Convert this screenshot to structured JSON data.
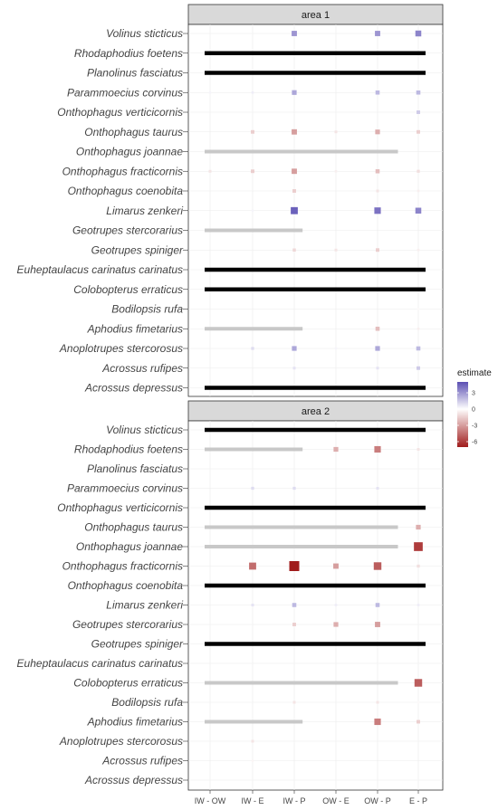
{
  "chart_data": {
    "type": "heatmap",
    "x_categories": [
      "IW - OW",
      "IW - E",
      "IW - P",
      "OW - E",
      "OW - P",
      "E - P"
    ],
    "species": [
      "Volinus sticticus",
      "Rhodaphodius foetens",
      "Planolinus fasciatus",
      "Parammoecius corvinus",
      "Onthophagus verticicornis",
      "Onthophagus taurus",
      "Onthophagus joannae",
      "Onthophagus fracticornis",
      "Onthophagus coenobita",
      "Limarus zenkeri",
      "Geotrupes stercorarius",
      "Geotrupes spiniger",
      "Euheptaulacus carinatus carinatus",
      "Colobopterus erraticus",
      "Bodilopsis rufa",
      "Aphodius fimetarius",
      "Anoplotrupes stercorosus",
      "Acrossus rufipes",
      "Acrossus depressus"
    ],
    "legend": {
      "title": "estimate",
      "ticks": [
        3,
        0,
        -3,
        -6
      ],
      "range": [
        -7,
        5
      ],
      "high_color": "#5b4fb3",
      "mid_color": "#ffffff",
      "low_color": "#a01c1c"
    },
    "colors": {
      "black_line": "#000000",
      "grey_line": "#c8c8c8",
      "strip_fill": "#d9d9d9",
      "grid": "#ebebeb"
    },
    "panels": [
      {
        "title": "area 1",
        "rows": {
          "Volinus sticticus": {
            "values": [
              null,
              null,
              3,
              null,
              3,
              3.5
            ]
          },
          "Rhodaphodius foetens": {
            "line": "black",
            "span": [
              0,
              5
            ]
          },
          "Planolinus fasciatus": {
            "line": "black",
            "span": [
              0,
              5
            ]
          },
          "Parammoecius corvinus": {
            "values": [
              0.3,
              0.5,
              2.5,
              null,
              2,
              2
            ]
          },
          "Onthophagus verticicornis": {
            "values": [
              null,
              null,
              null,
              null,
              null,
              1.5
            ]
          },
          "Onthophagus taurus": {
            "values": [
              null,
              -1.5,
              -3,
              -0.8,
              -2.5,
              -1.5
            ]
          },
          "Onthophagus joannae": {
            "line": "grey",
            "span": [
              0,
              4.5
            ]
          },
          "Onthophagus fracticornis": {
            "values": [
              -0.8,
              -1.5,
              -3,
              -0.5,
              -2,
              -1
            ]
          },
          "Onthophagus coenobita": {
            "values": [
              null,
              null,
              -1.5,
              null,
              -0.8,
              -0.5
            ]
          },
          "Limarus zenkeri": {
            "values": [
              null,
              0.3,
              4.5,
              null,
              4,
              3.5
            ]
          },
          "Geotrupes stercorarius": {
            "line": "grey",
            "span": [
              0,
              2.2
            ]
          },
          "Geotrupes spiniger": {
            "values": [
              null,
              null,
              -1.2,
              -0.8,
              -1.5,
              -0.5
            ]
          },
          "Euheptaulacus carinatus carinatus": {
            "line": "black",
            "span": [
              0,
              5
            ]
          },
          "Colobopterus erraticus": {
            "line": "black",
            "span": [
              0,
              5
            ]
          },
          "Bodilopsis rufa": {
            "values": [
              null,
              null,
              null,
              null,
              null,
              -0.2
            ]
          },
          "Aphodius fimetarius": {
            "line": "grey",
            "span": [
              0,
              2.2
            ],
            "values": [
              null,
              null,
              null,
              null,
              -2,
              -0.5
            ]
          },
          "Anoplotrupes stercorosus": {
            "values": [
              null,
              1,
              2.5,
              0.3,
              2.5,
              2
            ]
          },
          "Acrossus rufipes": {
            "values": [
              null,
              null,
              0.8,
              null,
              0.8,
              1.5
            ]
          },
          "Acrossus depressus": {
            "line": "black",
            "span": [
              0,
              5
            ]
          }
        }
      },
      {
        "title": "area 2",
        "rows": {
          "Volinus sticticus": {
            "line": "black",
            "span": [
              0,
              5
            ]
          },
          "Rhodaphodius foetens": {
            "line": "grey",
            "span": [
              0,
              2.2
            ],
            "values": [
              null,
              null,
              null,
              -2.5,
              -4,
              -0.8
            ]
          },
          "Planolinus fasciatus": {},
          "Parammoecius corvinus": {
            "values": [
              null,
              1,
              1,
              null,
              0.8,
              null
            ]
          },
          "Onthophagus verticicornis": {
            "line": "black",
            "span": [
              0,
              5
            ]
          },
          "Onthophagus taurus": {
            "line": "grey",
            "span": [
              0,
              4.5
            ],
            "values": [
              null,
              null,
              null,
              null,
              null,
              -2.5
            ]
          },
          "Onthophagus joannae": {
            "line": "grey",
            "span": [
              0,
              4.5
            ],
            "values": [
              null,
              null,
              null,
              null,
              null,
              -6
            ]
          },
          "Onthophagus fracticornis": {
            "values": [
              null,
              -4.5,
              -7,
              -3,
              -5,
              -1
            ]
          },
          "Onthophagus coenobita": {
            "line": "black",
            "span": [
              0,
              5
            ]
          },
          "Limarus zenkeri": {
            "values": [
              null,
              0.8,
              2,
              0.5,
              2,
              0.5
            ]
          },
          "Geotrupes stercorarius": {
            "values": [
              null,
              null,
              -1.5,
              -2.5,
              -3,
              null
            ]
          },
          "Geotrupes spiniger": {
            "line": "black",
            "span": [
              0,
              5
            ]
          },
          "Euheptaulacus carinatus carinatus": {},
          "Colobopterus erraticus": {
            "line": "grey",
            "span": [
              0,
              4.5
            ],
            "values": [
              null,
              null,
              null,
              null,
              null,
              -5
            ]
          },
          "Bodilopsis rufa": {
            "values": [
              null,
              null,
              -0.8,
              null,
              -0.8,
              -0.2
            ]
          },
          "Aphodius fimetarius": {
            "line": "grey",
            "span": [
              0,
              2.2
            ],
            "values": [
              null,
              null,
              null,
              null,
              -4,
              -1.5
            ]
          },
          "Anoplotrupes stercorosus": {
            "values": [
              null,
              -0.8,
              null,
              null,
              null,
              null
            ]
          },
          "Acrossus rufipes": {
            "values": [
              null,
              -0.3,
              null,
              null,
              null,
              null
            ]
          },
          "Acrossus depressus": {}
        }
      }
    ]
  }
}
